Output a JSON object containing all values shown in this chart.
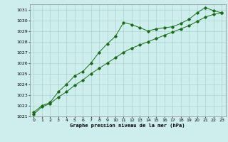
{
  "title": "Graphe pression niveau de la mer (hPa)",
  "background_color": "#ceeeed",
  "grid_color": "#aad4cc",
  "line_color": "#1a6b1a",
  "xlim": [
    -0.5,
    23.5
  ],
  "ylim": [
    1021,
    1031.5
  ],
  "yticks": [
    1021,
    1022,
    1023,
    1024,
    1025,
    1026,
    1027,
    1028,
    1029,
    1030,
    1031
  ],
  "xticks": [
    0,
    1,
    2,
    3,
    4,
    5,
    6,
    7,
    8,
    9,
    10,
    11,
    12,
    13,
    14,
    15,
    16,
    17,
    18,
    19,
    20,
    21,
    22,
    23
  ],
  "series1_x": [
    0,
    1,
    2,
    3,
    4,
    5,
    6,
    7,
    8,
    9,
    10,
    11,
    12,
    13,
    14,
    15,
    16,
    17,
    18,
    19,
    20,
    21,
    22,
    23
  ],
  "series1_y": [
    1021.4,
    1022.0,
    1022.3,
    1023.3,
    1024.0,
    1024.8,
    1025.2,
    1026.0,
    1027.0,
    1027.8,
    1028.5,
    1029.8,
    1029.6,
    1029.3,
    1029.0,
    1029.2,
    1029.3,
    1029.4,
    1029.7,
    1030.1,
    1030.7,
    1031.2,
    1030.9,
    1030.7
  ],
  "series2_x": [
    0,
    1,
    2,
    3,
    4,
    5,
    6,
    7,
    8,
    9,
    10,
    11,
    12,
    13,
    14,
    15,
    16,
    17,
    18,
    19,
    20,
    21,
    22,
    23
  ],
  "series2_y": [
    1021.2,
    1021.9,
    1022.2,
    1022.8,
    1023.3,
    1023.9,
    1024.4,
    1025.0,
    1025.5,
    1026.0,
    1026.5,
    1027.0,
    1027.4,
    1027.7,
    1028.0,
    1028.3,
    1028.6,
    1028.9,
    1029.2,
    1029.5,
    1029.9,
    1030.3,
    1030.55,
    1030.7
  ]
}
